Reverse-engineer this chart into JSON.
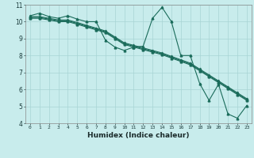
{
  "xlabel": "Humidex (Indice chaleur)",
  "bg_color": "#c8ecec",
  "grid_color": "#a8d4d4",
  "line_color": "#1a6b5a",
  "xlim": [
    -0.5,
    23.5
  ],
  "ylim": [
    4,
    11
  ],
  "yticks": [
    4,
    5,
    6,
    7,
    8,
    9,
    10,
    11
  ],
  "xticks": [
    0,
    1,
    2,
    3,
    4,
    5,
    6,
    7,
    8,
    9,
    10,
    11,
    12,
    13,
    14,
    15,
    16,
    17,
    18,
    19,
    20,
    21,
    22,
    23
  ],
  "line1_x": [
    0,
    1,
    2,
    3,
    4,
    5,
    6,
    7,
    8,
    9,
    10,
    11,
    12,
    13,
    14,
    15,
    16,
    17,
    18,
    19,
    20,
    21,
    22,
    23
  ],
  "line1_y": [
    10.35,
    10.5,
    10.3,
    10.2,
    10.35,
    10.15,
    10.0,
    10.0,
    8.9,
    8.5,
    8.3,
    8.5,
    8.55,
    10.2,
    10.85,
    10.0,
    8.0,
    8.0,
    6.35,
    5.35,
    6.3,
    4.55,
    4.3,
    5.05
  ],
  "line2_x": [
    0,
    1,
    2,
    3,
    4,
    5,
    6,
    7,
    8,
    9,
    10,
    11,
    12,
    13,
    14,
    15,
    16,
    17,
    18,
    19,
    20,
    21,
    22,
    23
  ],
  "line2_y": [
    10.3,
    10.3,
    10.2,
    10.1,
    10.1,
    9.95,
    9.78,
    9.62,
    9.45,
    9.1,
    8.75,
    8.6,
    8.45,
    8.3,
    8.15,
    7.95,
    7.75,
    7.55,
    7.2,
    6.85,
    6.5,
    6.15,
    5.8,
    5.45
  ],
  "line3_x": [
    0,
    1,
    2,
    3,
    4,
    5,
    6,
    7,
    8,
    9,
    10,
    11,
    12,
    13,
    14,
    15,
    16,
    17,
    18,
    19,
    20,
    21,
    22,
    23
  ],
  "line3_y": [
    10.25,
    10.25,
    10.15,
    10.05,
    10.05,
    9.9,
    9.73,
    9.57,
    9.4,
    9.05,
    8.7,
    8.55,
    8.4,
    8.25,
    8.1,
    7.9,
    7.7,
    7.5,
    7.15,
    6.8,
    6.45,
    6.1,
    5.75,
    5.4
  ],
  "line4_x": [
    0,
    1,
    2,
    3,
    4,
    5,
    6,
    7,
    8,
    9,
    10,
    11,
    12,
    13,
    14,
    15,
    16,
    17,
    18,
    19,
    20,
    21,
    22,
    23
  ],
  "line4_y": [
    10.2,
    10.2,
    10.1,
    10.0,
    10.0,
    9.85,
    9.68,
    9.52,
    9.35,
    9.0,
    8.65,
    8.5,
    8.35,
    8.2,
    8.05,
    7.85,
    7.65,
    7.45,
    7.1,
    6.75,
    6.4,
    6.05,
    5.7,
    5.35
  ]
}
